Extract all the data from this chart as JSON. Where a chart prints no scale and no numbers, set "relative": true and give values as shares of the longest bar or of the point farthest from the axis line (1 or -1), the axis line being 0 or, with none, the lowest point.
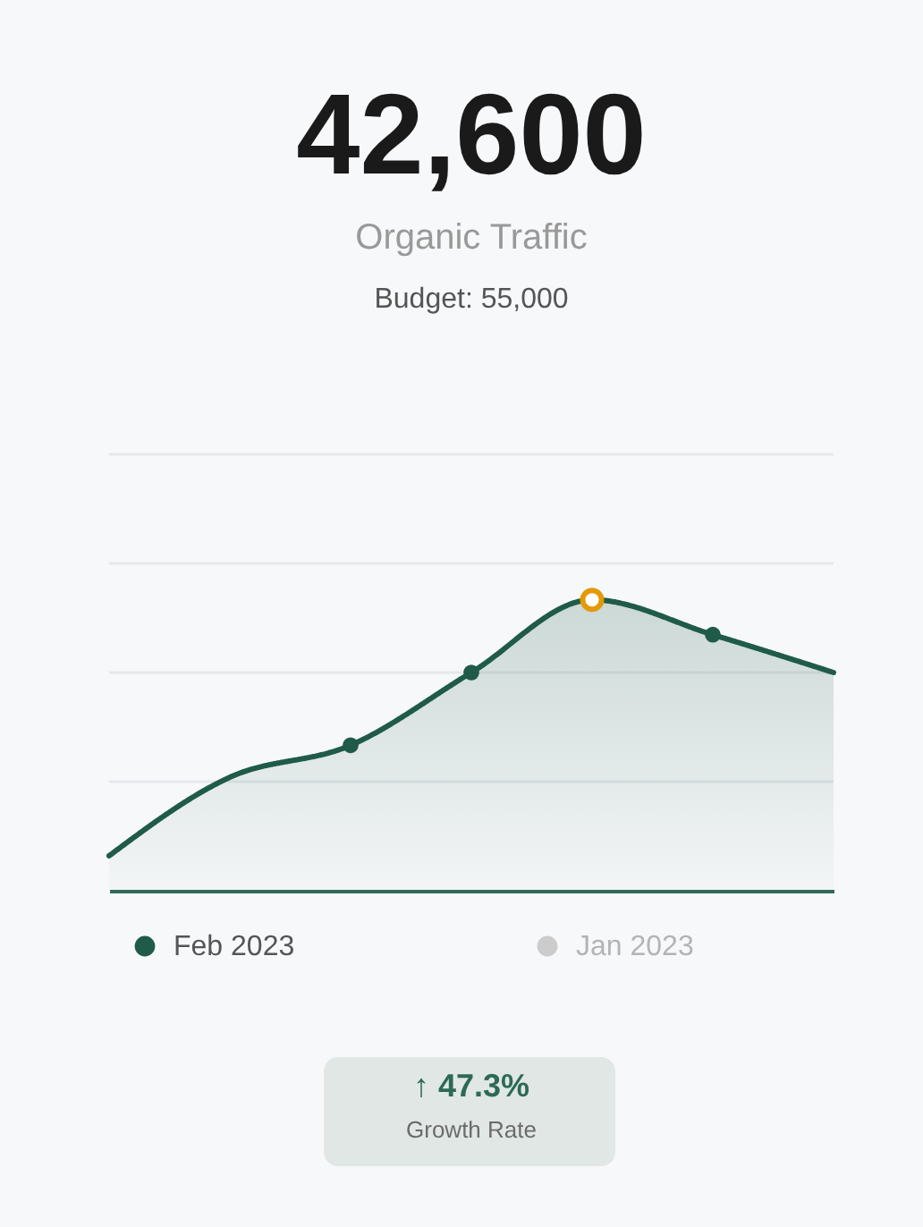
{
  "chart_data": {
    "type": "area",
    "title": "42,600",
    "subtitle": "Organic Traffic",
    "annotations": [
      "Budget: 55,000",
      "↑ 47.3%",
      "Growth Rate"
    ],
    "categories": [
      null,
      null,
      null,
      null,
      null,
      null,
      null
    ],
    "relative": true,
    "series": [
      {
        "name": "Feb 2023",
        "color": "#1f5b48",
        "values": [
          0.12,
          0.39,
          0.5,
          0.75,
          1,
          0.88,
          0.75
        ],
        "colors": [
          null,
          null,
          "#1f5b48",
          "#1f5b48",
          "#e39a0a",
          "#1f5b48",
          null
        ]
      },
      {
        "name": "Jan 2023",
        "color": "#cccccc",
        "values": [
          null,
          null,
          null,
          null,
          null,
          null,
          null
        ]
      }
    ],
    "ref_lines": [
      {
        "axis": "y",
        "value": 0.375,
        "color": "#e6e8eb"
      },
      {
        "axis": "y",
        "value": 0.75,
        "color": "#e6e8eb"
      },
      {
        "axis": "y",
        "value": 1.125,
        "color": "#e6e8eb"
      },
      {
        "axis": "y",
        "value": 1.5,
        "color": "#e6e8eb"
      }
    ],
    "marker": "circle",
    "legend": "bottom"
  }
}
